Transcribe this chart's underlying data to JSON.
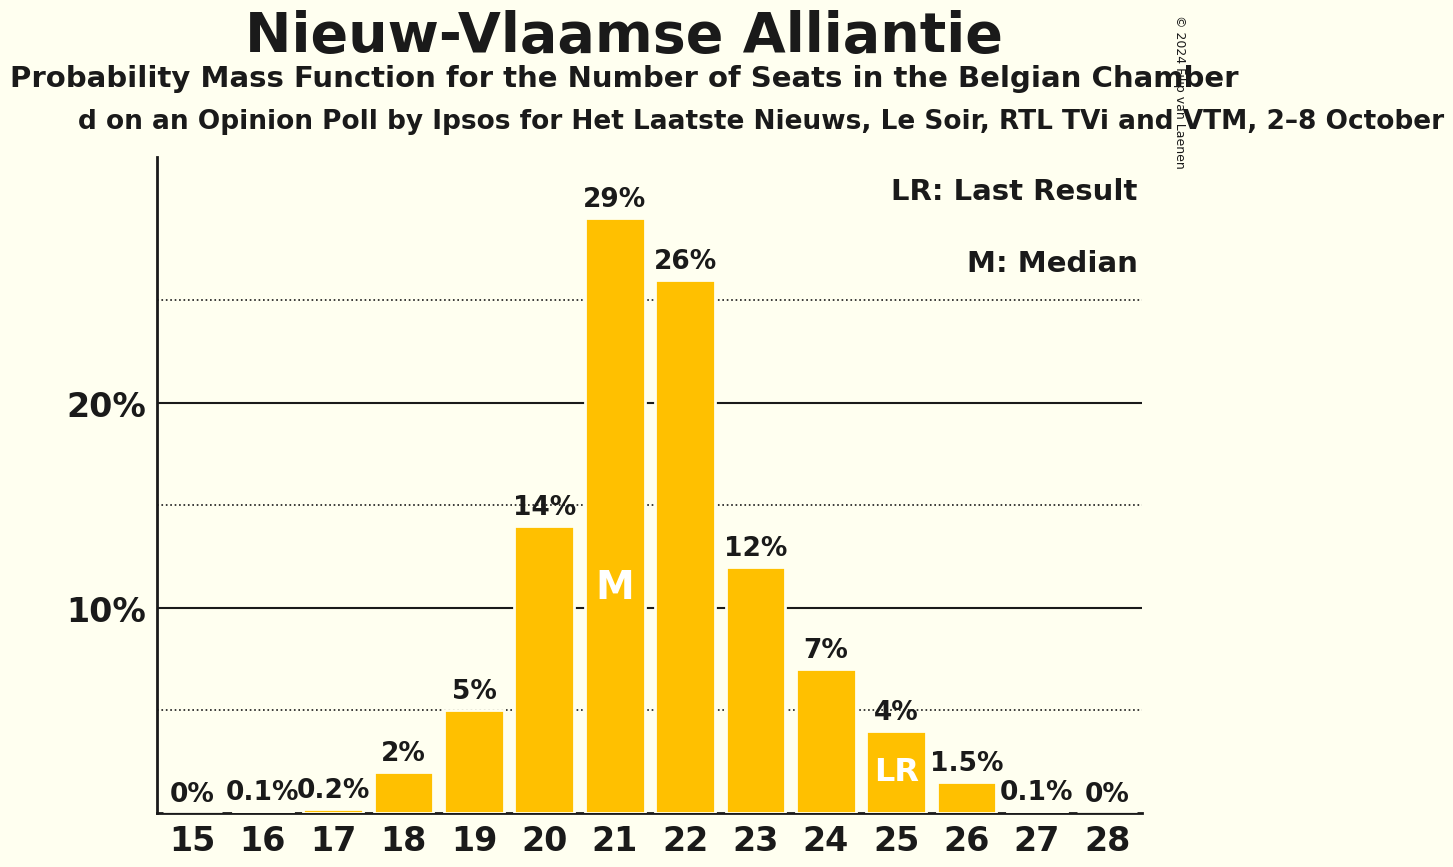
{
  "title": "Nieuw-Vlaamse Alliantie",
  "subtitle": "Probability Mass Function for the Number of Seats in the Belgian Chamber",
  "sub_subtitle": "d on an Opinion Poll by Ipsos for Het Laatste Nieuws, Le Soir, RTL TVi and VTM, 2–8 October",
  "copyright": "© 2024 Filip van Laenen",
  "seats": [
    15,
    16,
    17,
    18,
    19,
    20,
    21,
    22,
    23,
    24,
    25,
    26,
    27,
    28
  ],
  "probabilities": [
    0.0,
    0.1,
    0.2,
    2.0,
    5.0,
    14.0,
    29.0,
    26.0,
    12.0,
    7.0,
    4.0,
    1.5,
    0.1,
    0.0
  ],
  "bar_color": "#FFC000",
  "bar_edge_color": "#FFFFF0",
  "background_color": "#FFFFF0",
  "text_color": "#1a1a1a",
  "median_seat": 21,
  "last_result_seat": 25,
  "legend_lr": "LR: Last Result",
  "legend_m": "M: Median",
  "solid_yticks": [
    10,
    20
  ],
  "dotted_yticks": [
    5,
    15,
    25
  ],
  "ylim": [
    0,
    32
  ],
  "xlim": [
    14.5,
    28.5
  ],
  "tick_fontsize": 24,
  "title_fontsize": 40,
  "subtitle_fontsize": 21,
  "sub_subtitle_fontsize": 19,
  "bar_label_fontsize": 19,
  "legend_fontsize": 21,
  "ytick_fontsize": 24,
  "copyright_fontsize": 9,
  "m_fontsize": 28,
  "lr_fontsize": 23
}
